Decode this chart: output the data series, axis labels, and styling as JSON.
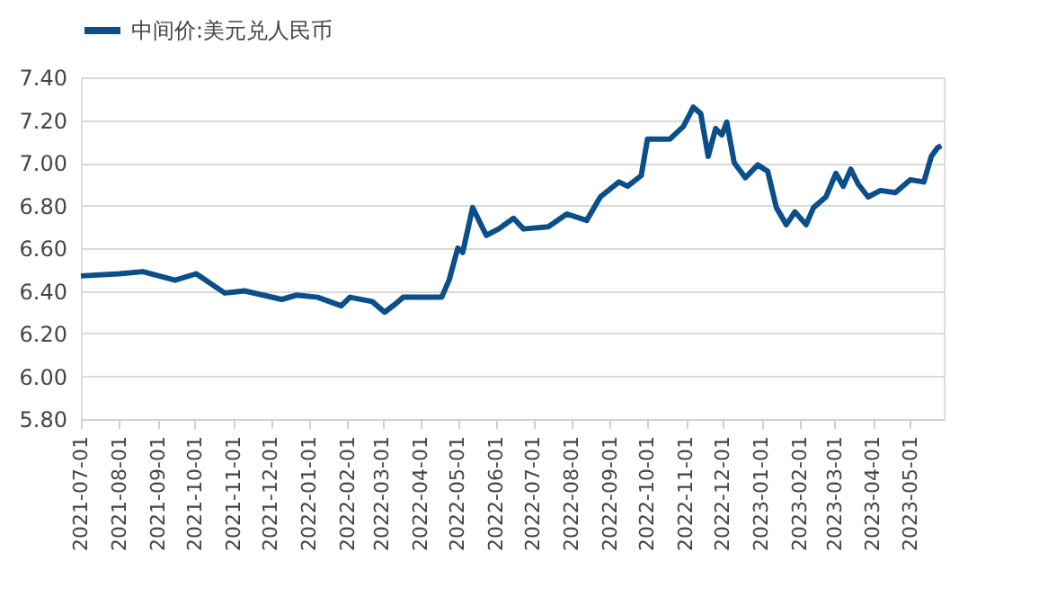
{
  "chart_data": {
    "type": "line",
    "x": [
      "2021-07-01",
      "2021-08-01",
      "2021-08-20",
      "2021-09-15",
      "2021-10-02",
      "2021-10-25",
      "2021-11-10",
      "2021-12-10",
      "2021-12-22",
      "2022-01-08",
      "2022-01-27",
      "2022-02-03",
      "2022-02-21",
      "2022-03-03",
      "2022-03-12",
      "2022-03-18",
      "2022-04-06",
      "2022-04-18",
      "2022-04-24",
      "2022-05-01",
      "2022-05-05",
      "2022-05-13",
      "2022-05-24",
      "2022-06-03",
      "2022-06-15",
      "2022-06-23",
      "2022-07-13",
      "2022-07-28",
      "2022-08-13",
      "2022-08-24",
      "2022-09-08",
      "2022-09-15",
      "2022-09-26",
      "2022-10-01",
      "2022-10-19",
      "2022-10-30",
      "2022-11-07",
      "2022-11-13",
      "2022-11-19",
      "2022-11-25",
      "2022-11-30",
      "2022-12-04",
      "2022-12-10",
      "2022-12-19",
      "2022-12-29",
      "2023-01-06",
      "2023-01-13",
      "2023-01-21",
      "2023-01-28",
      "2023-02-06",
      "2023-02-12",
      "2023-02-22",
      "2023-03-02",
      "2023-03-08",
      "2023-03-14",
      "2023-03-20",
      "2023-03-28",
      "2023-04-07",
      "2023-04-19",
      "2023-05-01",
      "2023-05-12",
      "2023-05-18",
      "2023-05-23",
      "2023-05-26"
    ],
    "series": [
      {
        "name": "中间价:美元兑人民币",
        "color": "#0b4f8a",
        "values": [
          6.47,
          6.48,
          6.49,
          6.45,
          6.48,
          6.39,
          6.4,
          6.36,
          6.38,
          6.37,
          6.33,
          6.37,
          6.35,
          6.3,
          6.34,
          6.37,
          6.37,
          6.37,
          6.45,
          6.6,
          6.58,
          6.79,
          6.66,
          6.69,
          6.74,
          6.69,
          6.7,
          6.76,
          6.73,
          6.84,
          6.91,
          6.89,
          6.94,
          7.11,
          7.11,
          7.17,
          7.26,
          7.23,
          7.03,
          7.16,
          7.13,
          7.19,
          7.0,
          6.93,
          6.99,
          6.96,
          6.79,
          6.71,
          6.77,
          6.71,
          6.79,
          6.84,
          6.95,
          6.89,
          6.97,
          6.9,
          6.84,
          6.87,
          6.86,
          6.92,
          6.91,
          7.03,
          7.07,
          7.08
        ]
      }
    ],
    "xlim": [
      "2021-07-01",
      "2023-05-28"
    ],
    "xticks": [
      "2021-07-01",
      "2021-08-01",
      "2021-09-01",
      "2021-10-01",
      "2021-11-01",
      "2021-12-01",
      "2022-01-01",
      "2022-02-01",
      "2022-03-01",
      "2022-04-01",
      "2022-05-01",
      "2022-06-01",
      "2022-07-01",
      "2022-08-01",
      "2022-09-01",
      "2022-10-01",
      "2022-11-01",
      "2022-12-01",
      "2023-01-01",
      "2023-02-01",
      "2023-03-01",
      "2023-04-01",
      "2023-05-01"
    ],
    "ylim": [
      5.8,
      7.4
    ],
    "yticks": [
      {
        "value": 5.8,
        "label": "5.80"
      },
      {
        "value": 6.0,
        "label": "6.00"
      },
      {
        "value": 6.2,
        "label": "6.20"
      },
      {
        "value": 6.4,
        "label": "6.40"
      },
      {
        "value": 6.6,
        "label": "6.60"
      },
      {
        "value": 6.8,
        "label": "6.80"
      },
      {
        "value": 7.0,
        "label": "7.00"
      },
      {
        "value": 7.2,
        "label": "7.20"
      },
      {
        "value": 7.4,
        "label": "7.40"
      }
    ],
    "grid": "y",
    "legend": "top",
    "line_style": "solid",
    "marker": "none"
  }
}
